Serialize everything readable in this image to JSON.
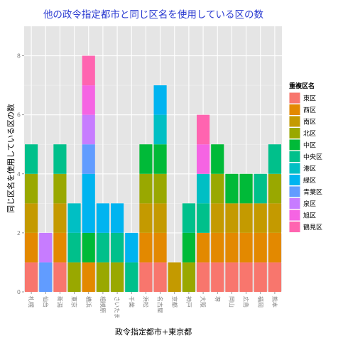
{
  "chart_data": {
    "type": "bar",
    "title": "他の政令指定都市と同じ区名を使用している区の数",
    "xlabel": "政令指定都市+東京都",
    "ylabel": "同じ区名を使用している区の数",
    "ylim": [
      0,
      9
    ],
    "yticks": [
      0,
      2,
      4,
      6,
      8
    ],
    "grid": true,
    "legend_title": "重複区名",
    "legend_position": "right",
    "categories": [
      "札幌",
      "仙台",
      "新潟",
      "東京",
      "横浜",
      "相模原",
      "さいたま",
      "千葉",
      "浜松",
      "名古屋",
      "京都",
      "神戸",
      "大阪",
      "堺",
      "岡山",
      "広島",
      "福岡",
      "熊本"
    ],
    "series": [
      {
        "name": "東区",
        "color": "#F8766D",
        "values": [
          1,
          0,
          1,
          0,
          0,
          0,
          0,
          0,
          1,
          1,
          0,
          0,
          1,
          1,
          1,
          1,
          1,
          1
        ]
      },
      {
        "name": "西区",
        "color": "#E38900",
        "values": [
          1,
          0,
          1,
          0,
          1,
          0,
          0,
          0,
          1,
          1,
          0,
          0,
          1,
          1,
          1,
          1,
          1,
          1
        ]
      },
      {
        "name": "南区",
        "color": "#C49A00",
        "values": [
          1,
          0,
          1,
          0,
          0,
          0,
          0,
          0,
          1,
          1,
          1,
          0,
          0,
          1,
          1,
          1,
          1,
          1
        ]
      },
      {
        "name": "北区",
        "color": "#99A800",
        "values": [
          1,
          0,
          1,
          1,
          0,
          1,
          1,
          0,
          1,
          1,
          0,
          1,
          0,
          1,
          0,
          0,
          0,
          1
        ]
      },
      {
        "name": "中区",
        "color": "#00BA38",
        "values": [
          0,
          0,
          0,
          0,
          1,
          0,
          0,
          0,
          1,
          1,
          0,
          1,
          0,
          1,
          1,
          1,
          0,
          0
        ]
      },
      {
        "name": "中央区",
        "color": "#00C08B",
        "values": [
          1,
          0,
          1,
          1,
          0,
          1,
          1,
          1,
          0,
          0,
          0,
          1,
          1,
          0,
          0,
          0,
          1,
          1
        ]
      },
      {
        "name": "港区",
        "color": "#00BFC4",
        "values": [
          0,
          0,
          0,
          1,
          0,
          0,
          0,
          0,
          0,
          1,
          0,
          0,
          1,
          0,
          0,
          0,
          0,
          0
        ]
      },
      {
        "name": "緑区",
        "color": "#00B4F0",
        "values": [
          0,
          0,
          0,
          0,
          2,
          1,
          1,
          1,
          0,
          1,
          0,
          0,
          0,
          0,
          0,
          0,
          0,
          0
        ]
      },
      {
        "name": "青葉区",
        "color": "#619CFF",
        "values": [
          0,
          1,
          0,
          0,
          1,
          0,
          0,
          0,
          0,
          0,
          0,
          0,
          0,
          0,
          0,
          0,
          0,
          0
        ]
      },
      {
        "name": "泉区",
        "color": "#C77CFF",
        "values": [
          0,
          1,
          0,
          0,
          1,
          0,
          0,
          0,
          0,
          0,
          0,
          0,
          0,
          0,
          0,
          0,
          0,
          0
        ]
      },
      {
        "name": "旭区",
        "color": "#F564E3",
        "values": [
          0,
          0,
          0,
          0,
          1,
          0,
          0,
          0,
          0,
          0,
          0,
          0,
          1,
          0,
          0,
          0,
          0,
          0
        ]
      },
      {
        "name": "鶴見区",
        "color": "#FF64B0",
        "values": [
          0,
          0,
          0,
          0,
          1,
          0,
          0,
          0,
          0,
          0,
          0,
          0,
          1,
          0,
          0,
          0,
          0,
          0
        ]
      }
    ]
  }
}
